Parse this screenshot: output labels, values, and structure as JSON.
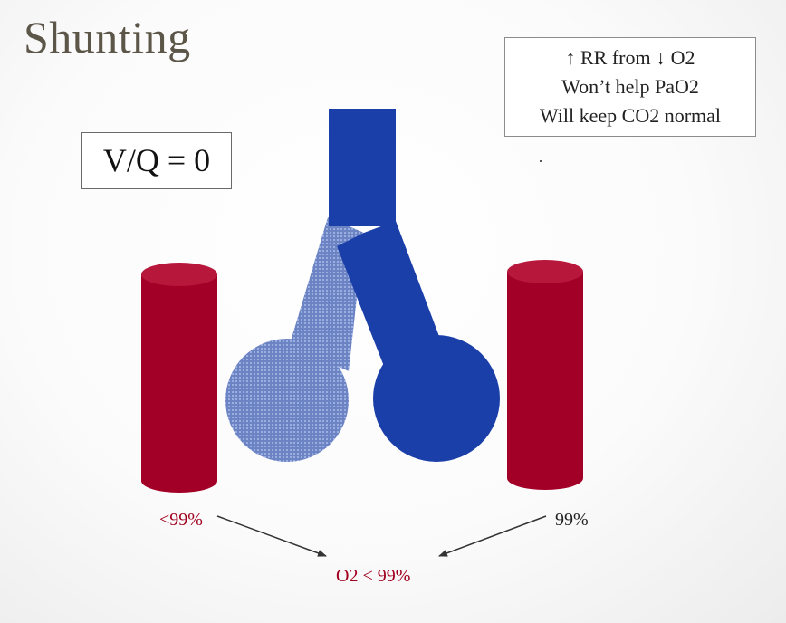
{
  "slide": {
    "title": "Shunting",
    "note_lines": [
      "↑ RR from ↓ O2",
      "Won’t help PaO2",
      "Will keep CO2 normal"
    ],
    "vq_label": "V/Q = 0",
    "left_saturation": "<99%",
    "right_saturation": "99%",
    "mixed_result": "O2 < 99%"
  },
  "colors": {
    "airway_blue": "#1b3fa8",
    "shunted_airway_blue": "#6c84c4",
    "vessel_red": "#a30027",
    "label_red": "#a0001e"
  }
}
